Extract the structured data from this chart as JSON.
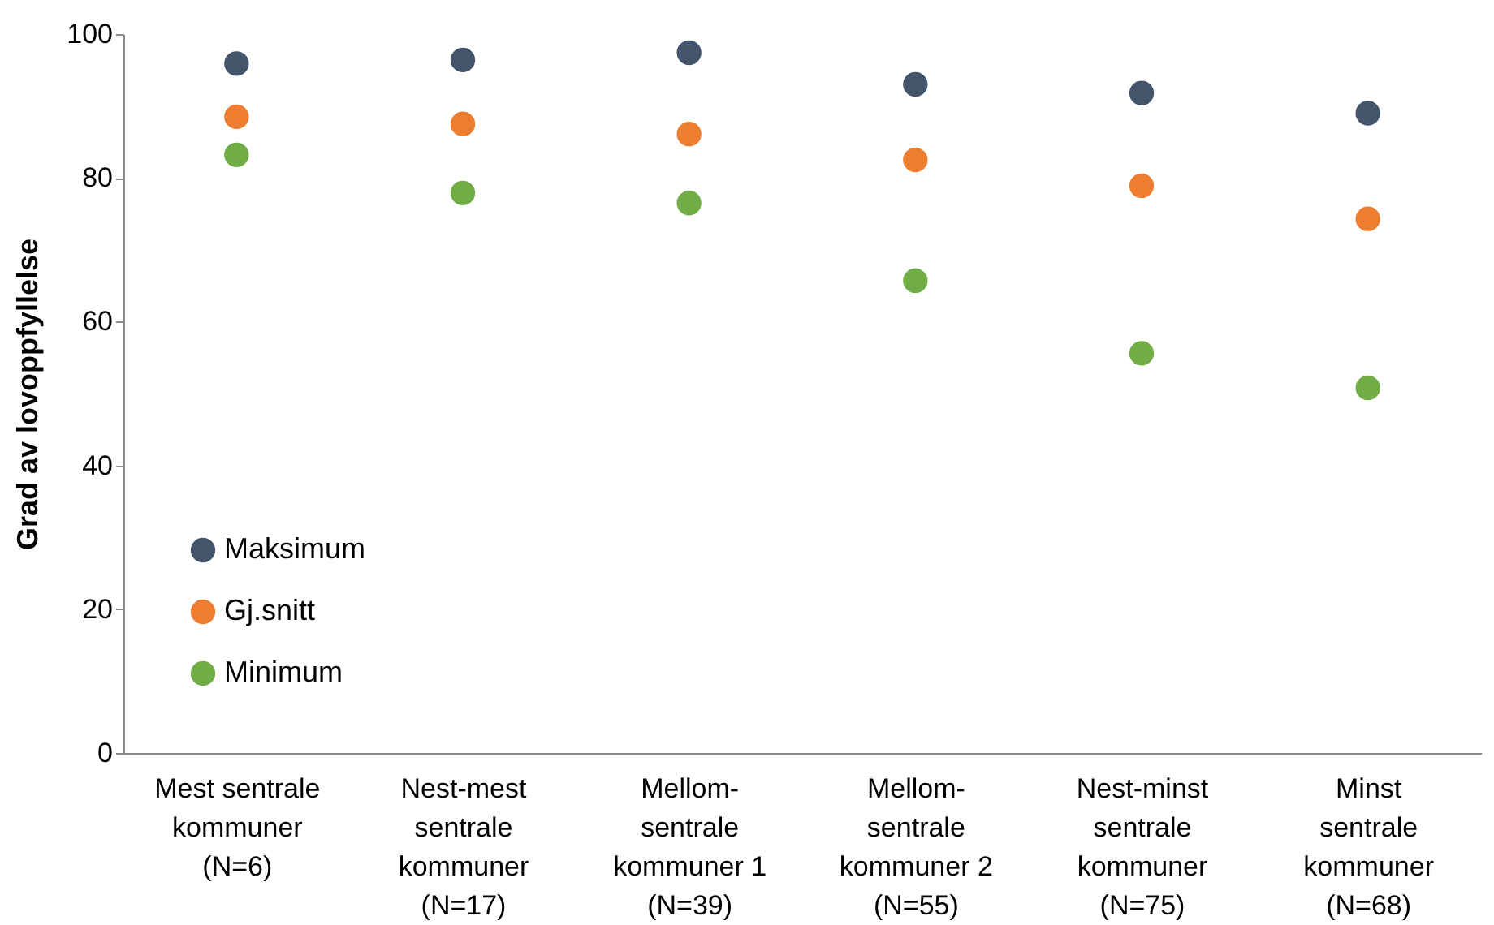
{
  "chart_data": {
    "type": "scatter",
    "ylabel": "Grad av lovoppfyllelse",
    "categories": [
      "Mest sentrale\nkommuner\n(N=6)",
      "Nest-mest\nsentrale\nkommuner\n(N=17)",
      "Mellom-\nsentrale\nkommuner 1\n(N=39)",
      "Mellom-\nsentrale\nkommuner 2\n(N=55)",
      "Nest-minst\nsentrale\nkommuner\n(N=75)",
      "Minst\nsentrale\nkommuner\n(N=68)"
    ],
    "series": [
      {
        "name": "Maksimum",
        "color": "#44546a",
        "values": [
          95.9,
          96.4,
          97.4,
          93.0,
          91.8,
          89.0
        ]
      },
      {
        "name": "Gj.snitt",
        "color": "#ed7d31",
        "values": [
          88.5,
          87.5,
          86.1,
          82.5,
          78.9,
          74.3
        ]
      },
      {
        "name": "Minimum",
        "color": "#70ad47",
        "values": [
          83.2,
          77.9,
          76.5,
          65.7,
          55.6,
          50.8
        ]
      }
    ],
    "ylim": [
      0,
      100
    ],
    "yticks": [
      0,
      20,
      40,
      60,
      80,
      100
    ],
    "grid": false,
    "legend": "bottom left",
    "marker": "circle"
  }
}
